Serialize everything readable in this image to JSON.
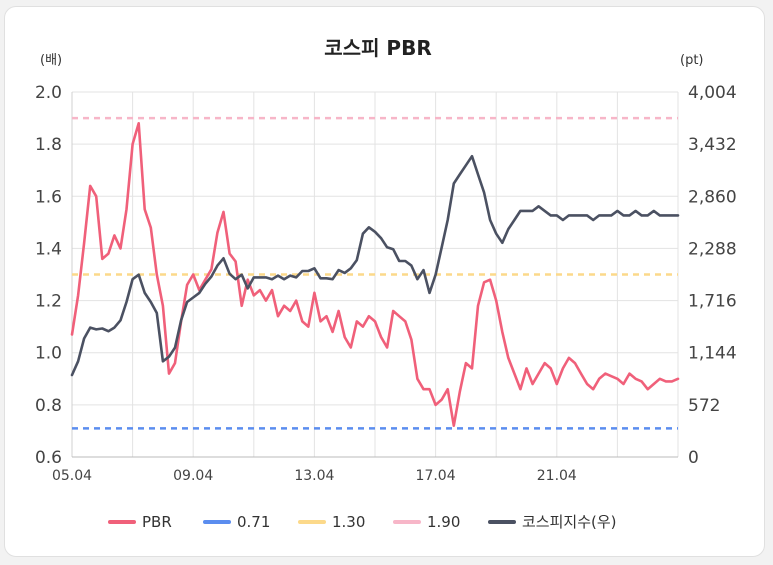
{
  "chart_data": {
    "type": "line",
    "title": "코스피 PBR",
    "y_left_unit": "(배)",
    "y_right_unit": "(pt)",
    "ylim_left": [
      0.6,
      2.0
    ],
    "ylim_right": [
      0,
      4004
    ],
    "y_left_ticks": [
      "2.0",
      "1.8",
      "1.6",
      "1.4",
      "1.2",
      "1.0",
      "0.8",
      "0.6"
    ],
    "y_right_ticks": [
      "4,004",
      "3,432",
      "2,860",
      "2,288",
      "1,716",
      "1,144",
      "572",
      "0"
    ],
    "x_ticks": [
      "05.04",
      "09.04",
      "13.04",
      "17.04",
      "21.04"
    ],
    "grid": true,
    "legend_position": "bottom",
    "reference_lines": [
      {
        "name": "0.71",
        "value": 0.71,
        "color": "#5b8def"
      },
      {
        "name": "1.30",
        "value": 1.3,
        "color": "#fcd98a"
      },
      {
        "name": "1.90",
        "value": 1.9,
        "color": "#f7b6c8"
      }
    ],
    "series": [
      {
        "name": "PBR",
        "axis": "left",
        "color": "#f0607a",
        "x": [
          2005.0,
          2005.2,
          2005.4,
          2005.6,
          2005.8,
          2006.0,
          2006.2,
          2006.4,
          2006.6,
          2006.8,
          2007.0,
          2007.2,
          2007.4,
          2007.6,
          2007.8,
          2008.0,
          2008.2,
          2008.4,
          2008.6,
          2008.8,
          2009.0,
          2009.2,
          2009.4,
          2009.6,
          2009.8,
          2010.0,
          2010.2,
          2010.4,
          2010.6,
          2010.8,
          2011.0,
          2011.2,
          2011.4,
          2011.6,
          2011.8,
          2012.0,
          2012.2,
          2012.4,
          2012.6,
          2012.8,
          2013.0,
          2013.2,
          2013.4,
          2013.6,
          2013.8,
          2014.0,
          2014.2,
          2014.4,
          2014.6,
          2014.8,
          2015.0,
          2015.2,
          2015.4,
          2015.6,
          2015.8,
          2016.0,
          2016.2,
          2016.4,
          2016.6,
          2016.8,
          2017.0,
          2017.2,
          2017.4,
          2017.6,
          2017.8,
          2018.0,
          2018.2,
          2018.4,
          2018.6,
          2018.8,
          2019.0,
          2019.2,
          2019.4,
          2019.6,
          2019.8,
          2020.0,
          2020.2,
          2020.4,
          2020.6,
          2020.8,
          2021.0,
          2021.2,
          2021.4,
          2021.6,
          2021.8,
          2022.0,
          2022.2,
          2022.4,
          2022.6,
          2022.8,
          2023.0,
          2023.2,
          2023.4,
          2023.6,
          2023.8,
          2024.0,
          2024.2,
          2024.4,
          2024.6,
          2024.8,
          2025.0
        ],
        "values": [
          1.07,
          1.22,
          1.42,
          1.64,
          1.6,
          1.36,
          1.38,
          1.45,
          1.4,
          1.55,
          1.8,
          1.88,
          1.55,
          1.48,
          1.3,
          1.18,
          0.92,
          0.96,
          1.12,
          1.26,
          1.3,
          1.24,
          1.28,
          1.32,
          1.46,
          1.54,
          1.38,
          1.35,
          1.18,
          1.28,
          1.22,
          1.24,
          1.2,
          1.24,
          1.14,
          1.18,
          1.16,
          1.2,
          1.12,
          1.1,
          1.23,
          1.12,
          1.14,
          1.08,
          1.16,
          1.06,
          1.02,
          1.12,
          1.1,
          1.14,
          1.12,
          1.06,
          1.02,
          1.16,
          1.14,
          1.12,
          1.05,
          0.9,
          0.86,
          0.86,
          0.8,
          0.82,
          0.86,
          0.72,
          0.85,
          0.96,
          0.94,
          1.18,
          1.27,
          1.28,
          1.2,
          1.08,
          0.98,
          0.92,
          0.86,
          0.94,
          0.88,
          0.92,
          0.96,
          0.94,
          0.88,
          0.94,
          0.98,
          0.96,
          0.92,
          0.88,
          0.86,
          0.9,
          0.92,
          0.91,
          0.9,
          0.88,
          0.92,
          0.9,
          0.89,
          0.86,
          0.88,
          0.9,
          0.89,
          0.89,
          0.9
        ]
      },
      {
        "name": "코스피지수(우)",
        "axis": "right",
        "color": "#4b5162",
        "x": [
          2005.0,
          2005.2,
          2005.4,
          2005.6,
          2005.8,
          2006.0,
          2006.2,
          2006.4,
          2006.6,
          2006.8,
          2007.0,
          2007.2,
          2007.4,
          2007.6,
          2007.8,
          2008.0,
          2008.2,
          2008.4,
          2008.6,
          2008.8,
          2009.0,
          2009.2,
          2009.4,
          2009.6,
          2009.8,
          2010.0,
          2010.2,
          2010.4,
          2010.6,
          2010.8,
          2011.0,
          2011.2,
          2011.4,
          2011.6,
          2011.8,
          2012.0,
          2012.2,
          2012.4,
          2012.6,
          2012.8,
          2013.0,
          2013.2,
          2013.4,
          2013.6,
          2013.8,
          2014.0,
          2014.2,
          2014.4,
          2014.6,
          2014.8,
          2015.0,
          2015.2,
          2015.4,
          2015.6,
          2015.8,
          2016.0,
          2016.2,
          2016.4,
          2016.6,
          2016.8,
          2017.0,
          2017.2,
          2017.4,
          2017.6,
          2017.8,
          2018.0,
          2018.2,
          2018.4,
          2018.6,
          2018.8,
          2019.0,
          2019.2,
          2019.4,
          2019.6,
          2019.8,
          2020.0,
          2020.2,
          2020.4,
          2020.6,
          2020.8,
          2021.0,
          2021.2,
          2021.4,
          2021.6,
          2021.8,
          2022.0,
          2022.2,
          2022.4,
          2022.6,
          2022.8,
          2023.0,
          2023.2,
          2023.4,
          2023.6,
          2023.8,
          2024.0,
          2024.2,
          2024.4,
          2024.6,
          2024.8,
          2025.0
        ],
        "values": [
          900,
          1050,
          1300,
          1420,
          1400,
          1410,
          1380,
          1420,
          1500,
          1700,
          1950,
          2000,
          1800,
          1700,
          1580,
          1050,
          1100,
          1200,
          1500,
          1700,
          1750,
          1800,
          1900,
          1980,
          2100,
          2180,
          2010,
          1950,
          2000,
          1850,
          1970,
          1970,
          1970,
          1950,
          1990,
          1950,
          1990,
          1970,
          2040,
          2040,
          2070,
          1960,
          1960,
          1950,
          2050,
          2020,
          2070,
          2160,
          2450,
          2520,
          2470,
          2400,
          2300,
          2280,
          2150,
          2150,
          2100,
          1950,
          2050,
          1800,
          2000,
          2300,
          2600,
          3000,
          3100,
          3200,
          3300,
          3100,
          2900,
          2600,
          2450,
          2350,
          2500,
          2600,
          2700,
          2700,
          2700,
          2750,
          2700,
          2650,
          2650,
          2600,
          2650,
          2650,
          2650,
          2650,
          2600,
          2650,
          2650,
          2650,
          2700,
          2650,
          2650,
          2700,
          2650,
          2650,
          2700,
          2650,
          2650,
          2650,
          2650
        ]
      }
    ]
  }
}
